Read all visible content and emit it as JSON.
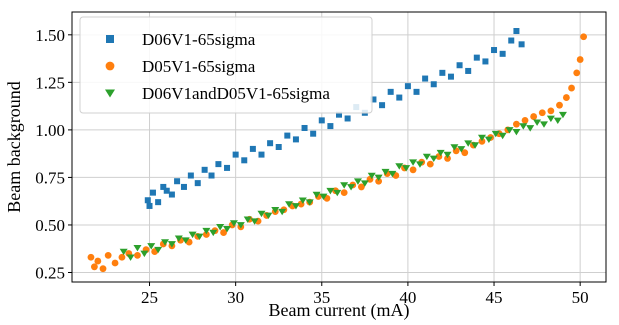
{
  "chart_data": {
    "type": "scatter",
    "xlabel": "Beam current (mA)",
    "ylabel": "Beam background",
    "xlim": [
      20.5,
      51.5
    ],
    "ylim": [
      0.2,
      1.62
    ],
    "xticks": [
      25,
      30,
      35,
      40,
      45,
      50
    ],
    "yticks": [
      0.25,
      0.5,
      0.75,
      1.0,
      1.25,
      1.5
    ],
    "xtick_labels": [
      "25",
      "30",
      "35",
      "40",
      "45",
      "50"
    ],
    "ytick_labels": [
      "0.25",
      "0.50",
      "0.75",
      "1.00",
      "1.25",
      "1.50"
    ],
    "grid": true,
    "legend_position": "top-left",
    "series": [
      {
        "name": "D06V1-65sigma",
        "marker": "square",
        "color": "#1f77b4",
        "points": [
          [
            24.9,
            0.63
          ],
          [
            25.0,
            0.6
          ],
          [
            25.2,
            0.67
          ],
          [
            25.5,
            0.62
          ],
          [
            25.8,
            0.7
          ],
          [
            26.0,
            0.68
          ],
          [
            26.3,
            0.66
          ],
          [
            26.6,
            0.73
          ],
          [
            27.0,
            0.7
          ],
          [
            27.4,
            0.76
          ],
          [
            27.8,
            0.72
          ],
          [
            28.2,
            0.79
          ],
          [
            28.6,
            0.76
          ],
          [
            29.0,
            0.82
          ],
          [
            29.5,
            0.8
          ],
          [
            30.0,
            0.87
          ],
          [
            30.5,
            0.84
          ],
          [
            31.0,
            0.9
          ],
          [
            31.5,
            0.87
          ],
          [
            32.0,
            0.93
          ],
          [
            32.5,
            0.91
          ],
          [
            33.0,
            0.97
          ],
          [
            33.5,
            0.95
          ],
          [
            34.0,
            1.01
          ],
          [
            34.5,
            0.98
          ],
          [
            35.0,
            1.05
          ],
          [
            35.5,
            1.02
          ],
          [
            36.0,
            1.08
          ],
          [
            36.5,
            1.06
          ],
          [
            37.0,
            1.12
          ],
          [
            37.5,
            1.09
          ],
          [
            38.0,
            1.16
          ],
          [
            38.5,
            1.13
          ],
          [
            39.0,
            1.2
          ],
          [
            39.5,
            1.17
          ],
          [
            40.0,
            1.23
          ],
          [
            40.5,
            1.2
          ],
          [
            41.0,
            1.27
          ],
          [
            41.5,
            1.24
          ],
          [
            42.0,
            1.3
          ],
          [
            42.5,
            1.28
          ],
          [
            43.0,
            1.34
          ],
          [
            43.5,
            1.31
          ],
          [
            44.0,
            1.38
          ],
          [
            44.5,
            1.36
          ],
          [
            45.0,
            1.42
          ],
          [
            45.5,
            1.4
          ],
          [
            46.0,
            1.47
          ],
          [
            46.3,
            1.52
          ],
          [
            46.6,
            1.45
          ]
        ]
      },
      {
        "name": "D05V1-65sigma",
        "marker": "circle",
        "color": "#ff7f0e",
        "points": [
          [
            21.6,
            0.33
          ],
          [
            21.8,
            0.28
          ],
          [
            22.0,
            0.31
          ],
          [
            22.3,
            0.27
          ],
          [
            22.6,
            0.34
          ],
          [
            23.0,
            0.3
          ],
          [
            23.4,
            0.33
          ],
          [
            23.8,
            0.35
          ],
          [
            24.3,
            0.34
          ],
          [
            24.8,
            0.37
          ],
          [
            25.3,
            0.36
          ],
          [
            25.8,
            0.4
          ],
          [
            26.3,
            0.39
          ],
          [
            26.8,
            0.42
          ],
          [
            27.3,
            0.41
          ],
          [
            27.8,
            0.44
          ],
          [
            28.3,
            0.45
          ],
          [
            28.8,
            0.47
          ],
          [
            29.3,
            0.46
          ],
          [
            29.8,
            0.5
          ],
          [
            30.3,
            0.49
          ],
          [
            30.8,
            0.53
          ],
          [
            31.3,
            0.52
          ],
          [
            31.8,
            0.55
          ],
          [
            32.3,
            0.57
          ],
          [
            32.8,
            0.58
          ],
          [
            33.3,
            0.6
          ],
          [
            33.8,
            0.61
          ],
          [
            34.3,
            0.62
          ],
          [
            34.8,
            0.65
          ],
          [
            35.3,
            0.64
          ],
          [
            35.8,
            0.68
          ],
          [
            36.3,
            0.67
          ],
          [
            36.8,
            0.71
          ],
          [
            37.3,
            0.7
          ],
          [
            37.8,
            0.74
          ],
          [
            38.3,
            0.73
          ],
          [
            38.8,
            0.77
          ],
          [
            39.3,
            0.76
          ],
          [
            39.8,
            0.8
          ],
          [
            40.3,
            0.79
          ],
          [
            40.8,
            0.83
          ],
          [
            41.3,
            0.82
          ],
          [
            41.8,
            0.86
          ],
          [
            42.3,
            0.85
          ],
          [
            42.8,
            0.89
          ],
          [
            43.3,
            0.88
          ],
          [
            43.8,
            0.92
          ],
          [
            44.3,
            0.94
          ],
          [
            44.8,
            0.96
          ],
          [
            45.3,
            0.98
          ],
          [
            45.8,
            1.0
          ],
          [
            46.3,
            1.03
          ],
          [
            46.8,
            1.05
          ],
          [
            47.3,
            1.07
          ],
          [
            47.8,
            1.09
          ],
          [
            48.3,
            1.1
          ],
          [
            48.8,
            1.13
          ],
          [
            49.2,
            1.17
          ],
          [
            49.5,
            1.22
          ],
          [
            49.8,
            1.3
          ],
          [
            50.0,
            1.37
          ],
          [
            50.2,
            1.49
          ]
        ]
      },
      {
        "name": "D06V1andD05V1-65sigma",
        "marker": "triangle-down",
        "color": "#2ca02c",
        "points": [
          [
            23.5,
            0.36
          ],
          [
            23.9,
            0.33
          ],
          [
            24.3,
            0.38
          ],
          [
            24.7,
            0.35
          ],
          [
            25.1,
            0.39
          ],
          [
            25.5,
            0.37
          ],
          [
            25.9,
            0.41
          ],
          [
            26.3,
            0.4
          ],
          [
            26.7,
            0.43
          ],
          [
            27.1,
            0.42
          ],
          [
            27.5,
            0.45
          ],
          [
            27.9,
            0.44
          ],
          [
            28.3,
            0.47
          ],
          [
            28.7,
            0.46
          ],
          [
            29.1,
            0.49
          ],
          [
            29.5,
            0.48
          ],
          [
            29.9,
            0.51
          ],
          [
            30.3,
            0.5
          ],
          [
            30.7,
            0.53
          ],
          [
            31.1,
            0.52
          ],
          [
            31.5,
            0.56
          ],
          [
            31.9,
            0.55
          ],
          [
            32.3,
            0.58
          ],
          [
            32.7,
            0.57
          ],
          [
            33.1,
            0.61
          ],
          [
            33.5,
            0.6
          ],
          [
            33.9,
            0.63
          ],
          [
            34.3,
            0.62
          ],
          [
            34.7,
            0.66
          ],
          [
            35.1,
            0.65
          ],
          [
            35.5,
            0.68
          ],
          [
            35.9,
            0.67
          ],
          [
            36.3,
            0.71
          ],
          [
            36.7,
            0.7
          ],
          [
            37.1,
            0.73
          ],
          [
            37.5,
            0.72
          ],
          [
            37.9,
            0.76
          ],
          [
            38.3,
            0.75
          ],
          [
            38.7,
            0.78
          ],
          [
            39.1,
            0.77
          ],
          [
            39.5,
            0.81
          ],
          [
            39.9,
            0.8
          ],
          [
            40.3,
            0.83
          ],
          [
            40.7,
            0.82
          ],
          [
            41.1,
            0.86
          ],
          [
            41.5,
            0.85
          ],
          [
            41.9,
            0.88
          ],
          [
            42.3,
            0.87
          ],
          [
            42.7,
            0.91
          ],
          [
            43.1,
            0.9
          ],
          [
            43.5,
            0.93
          ],
          [
            43.9,
            0.92
          ],
          [
            44.3,
            0.96
          ],
          [
            44.7,
            0.95
          ],
          [
            45.1,
            0.98
          ],
          [
            45.5,
            0.97
          ],
          [
            45.9,
            1.0
          ],
          [
            46.3,
            0.99
          ],
          [
            46.7,
            1.02
          ],
          [
            47.1,
            1.01
          ],
          [
            47.5,
            1.04
          ],
          [
            47.9,
            1.03
          ],
          [
            48.3,
            1.06
          ],
          [
            48.7,
            1.05
          ],
          [
            49.0,
            1.08
          ]
        ]
      }
    ]
  }
}
